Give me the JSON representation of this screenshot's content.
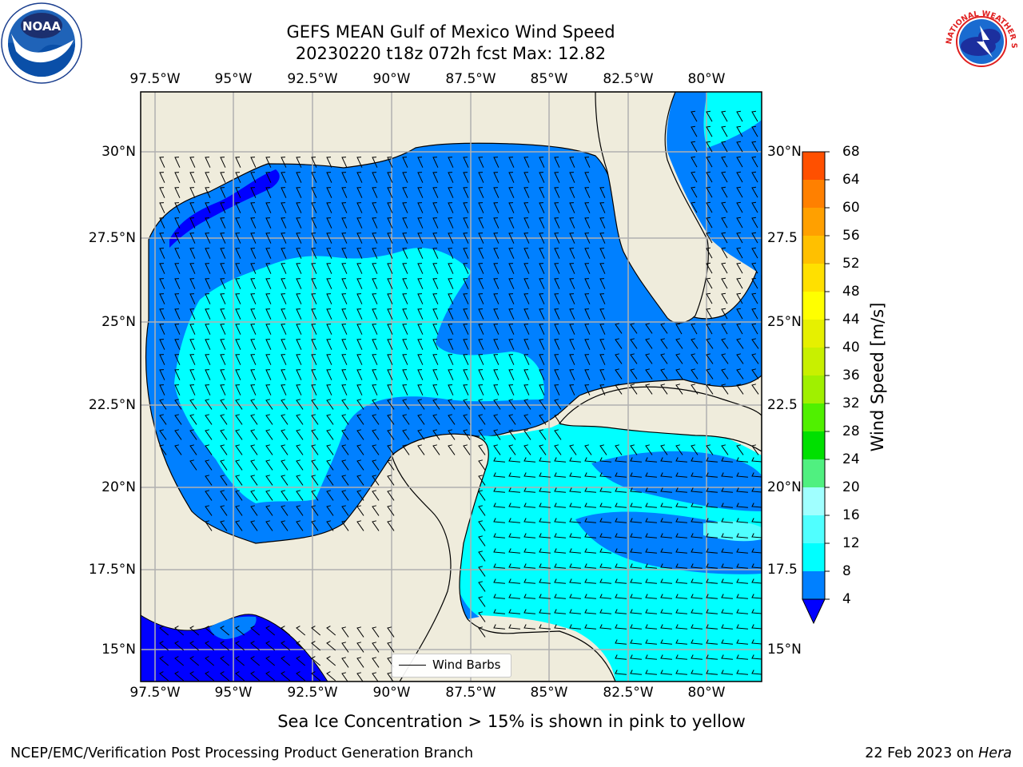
{
  "title": {
    "line1": "GEFS MEAN Gulf of Mexico Wind Speed",
    "line2": "20230220 t18z 072h fcst   Max: 12.82"
  },
  "map": {
    "lon_ticks": [
      "97.5°W",
      "95°W",
      "92.5°W",
      "90°W",
      "87.5°W",
      "85°W",
      "82.5°W",
      "80°W"
    ],
    "lat_ticks_left": [
      "30°N",
      "27.5°N",
      "25°N",
      "22.5°N",
      "20°N",
      "17.5°N",
      "15°N"
    ],
    "lat_ticks_right": [
      "30°N",
      "27.5",
      "25°N",
      "22.5",
      "20°N",
      "17.5",
      "15°N"
    ],
    "lon_range": [
      -98,
      -78.2
    ],
    "lat_range": [
      14,
      31.8
    ],
    "land_color": "#efecdc",
    "grid": true
  },
  "legend": {
    "label": "Wind Barbs"
  },
  "colorbar": {
    "title": "Wind Speed [m/s]",
    "labels": [
      "4",
      "8",
      "12",
      "16",
      "20",
      "24",
      "28",
      "32",
      "36",
      "40",
      "44",
      "48",
      "52",
      "56",
      "60",
      "64",
      "68"
    ],
    "colors": [
      "#0080ff",
      "#00ffff",
      "#50ffff",
      "#a0ffff",
      "#50f080",
      "#00e000",
      "#50f000",
      "#a0f000",
      "#c8f000",
      "#e6f000",
      "#ffff00",
      "#ffe000",
      "#ffc000",
      "#ffa000",
      "#ff8000",
      "#ff5000",
      "#ff2000",
      "#ff0000"
    ],
    "extend_color": "#0000ff"
  },
  "speed_colors": {
    "band_0_4": "#0000ff",
    "band_4_8": "#0080ff",
    "band_8_12": "#00ffff",
    "band_12_16": "#50ffff"
  },
  "logos": {
    "left": "NOAA",
    "right": "NATIONAL WEATHER SERVICE"
  },
  "footnote": "Sea Ice Concentration > 15% is shown in pink to yellow",
  "footer": {
    "left": "NCEP/EMC/Verification Post Processing Product Generation Branch",
    "right_prefix": "22 Feb 2023 on ",
    "right_italic": "Hera"
  }
}
